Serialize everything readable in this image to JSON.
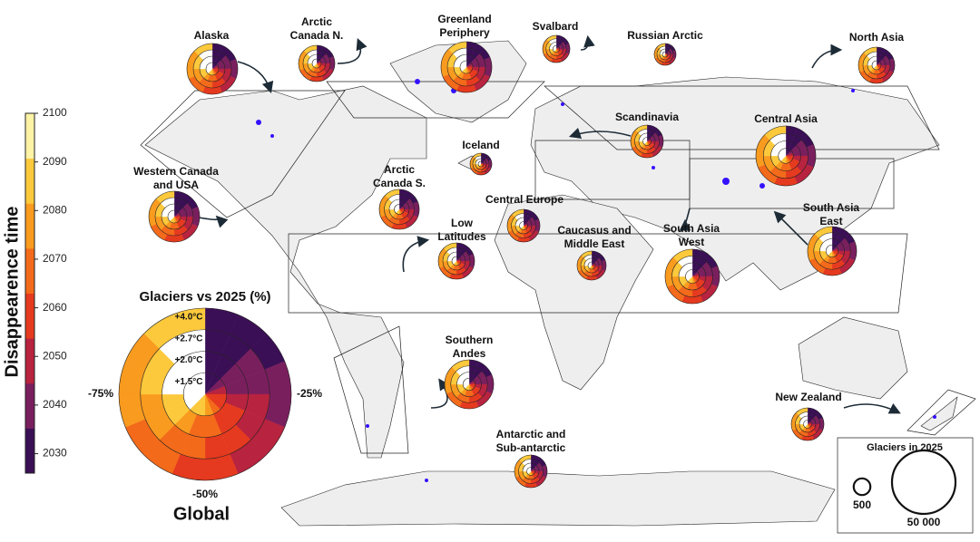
{
  "colorbar": {
    "title": "Disappearence time",
    "lim": [
      2026,
      2100
    ],
    "ticks": [
      2030,
      2040,
      2050,
      2060,
      2070,
      2080,
      2090,
      2100
    ],
    "colors": [
      "#3b0f56",
      "#7a1f5e",
      "#b8233f",
      "#e53a1f",
      "#f36a1a",
      "#f99b1f",
      "#fcc93c",
      "#fff3a6"
    ]
  },
  "regions": [
    {
      "label": [
        "Alaska"
      ]
    },
    {
      "label": [
        "Arctic",
        "Canada N."
      ]
    },
    {
      "label": [
        "Greenland",
        "Periphery"
      ]
    },
    {
      "label": [
        "Svalbard"
      ]
    },
    {
      "label": [
        "Russian Arctic"
      ]
    },
    {
      "label": [
        "North Asia"
      ]
    },
    {
      "label": [
        "Scandinavia"
      ]
    },
    {
      "label": [
        "Iceland"
      ]
    },
    {
      "label": [
        "Central Asia"
      ]
    },
    {
      "label": [
        "Western Canada",
        "and USA"
      ]
    },
    {
      "label": [
        "Arctic",
        "Canada S."
      ]
    },
    {
      "label": [
        "Central Europe"
      ]
    },
    {
      "label": [
        "Low",
        "Latitudes"
      ]
    },
    {
      "label": [
        "Caucasus and",
        "Middle East"
      ]
    },
    {
      "label": [
        "South Asia",
        "West"
      ]
    },
    {
      "label": [
        "South Asia",
        "East"
      ]
    },
    {
      "label": [
        "Southern",
        "Andes"
      ]
    },
    {
      "label": [
        "New Zealand"
      ]
    },
    {
      "label": [
        "Antarctic and",
        "Sub-antarctic"
      ]
    }
  ],
  "global": {
    "title": "Glaciers vs 2025 (%)",
    "name": "Global",
    "scenarios": [
      "+4.0°C",
      "+2.7°C",
      "+2.0°C",
      "+1.5°C"
    ],
    "quarters": [
      "-25%",
      "-50%",
      "-75%"
    ]
  },
  "size_legend": {
    "title": "Glaciers in 2025",
    "items": [
      500,
      {
        "value": 50000,
        "label": "50 000"
      }
    ]
  }
}
